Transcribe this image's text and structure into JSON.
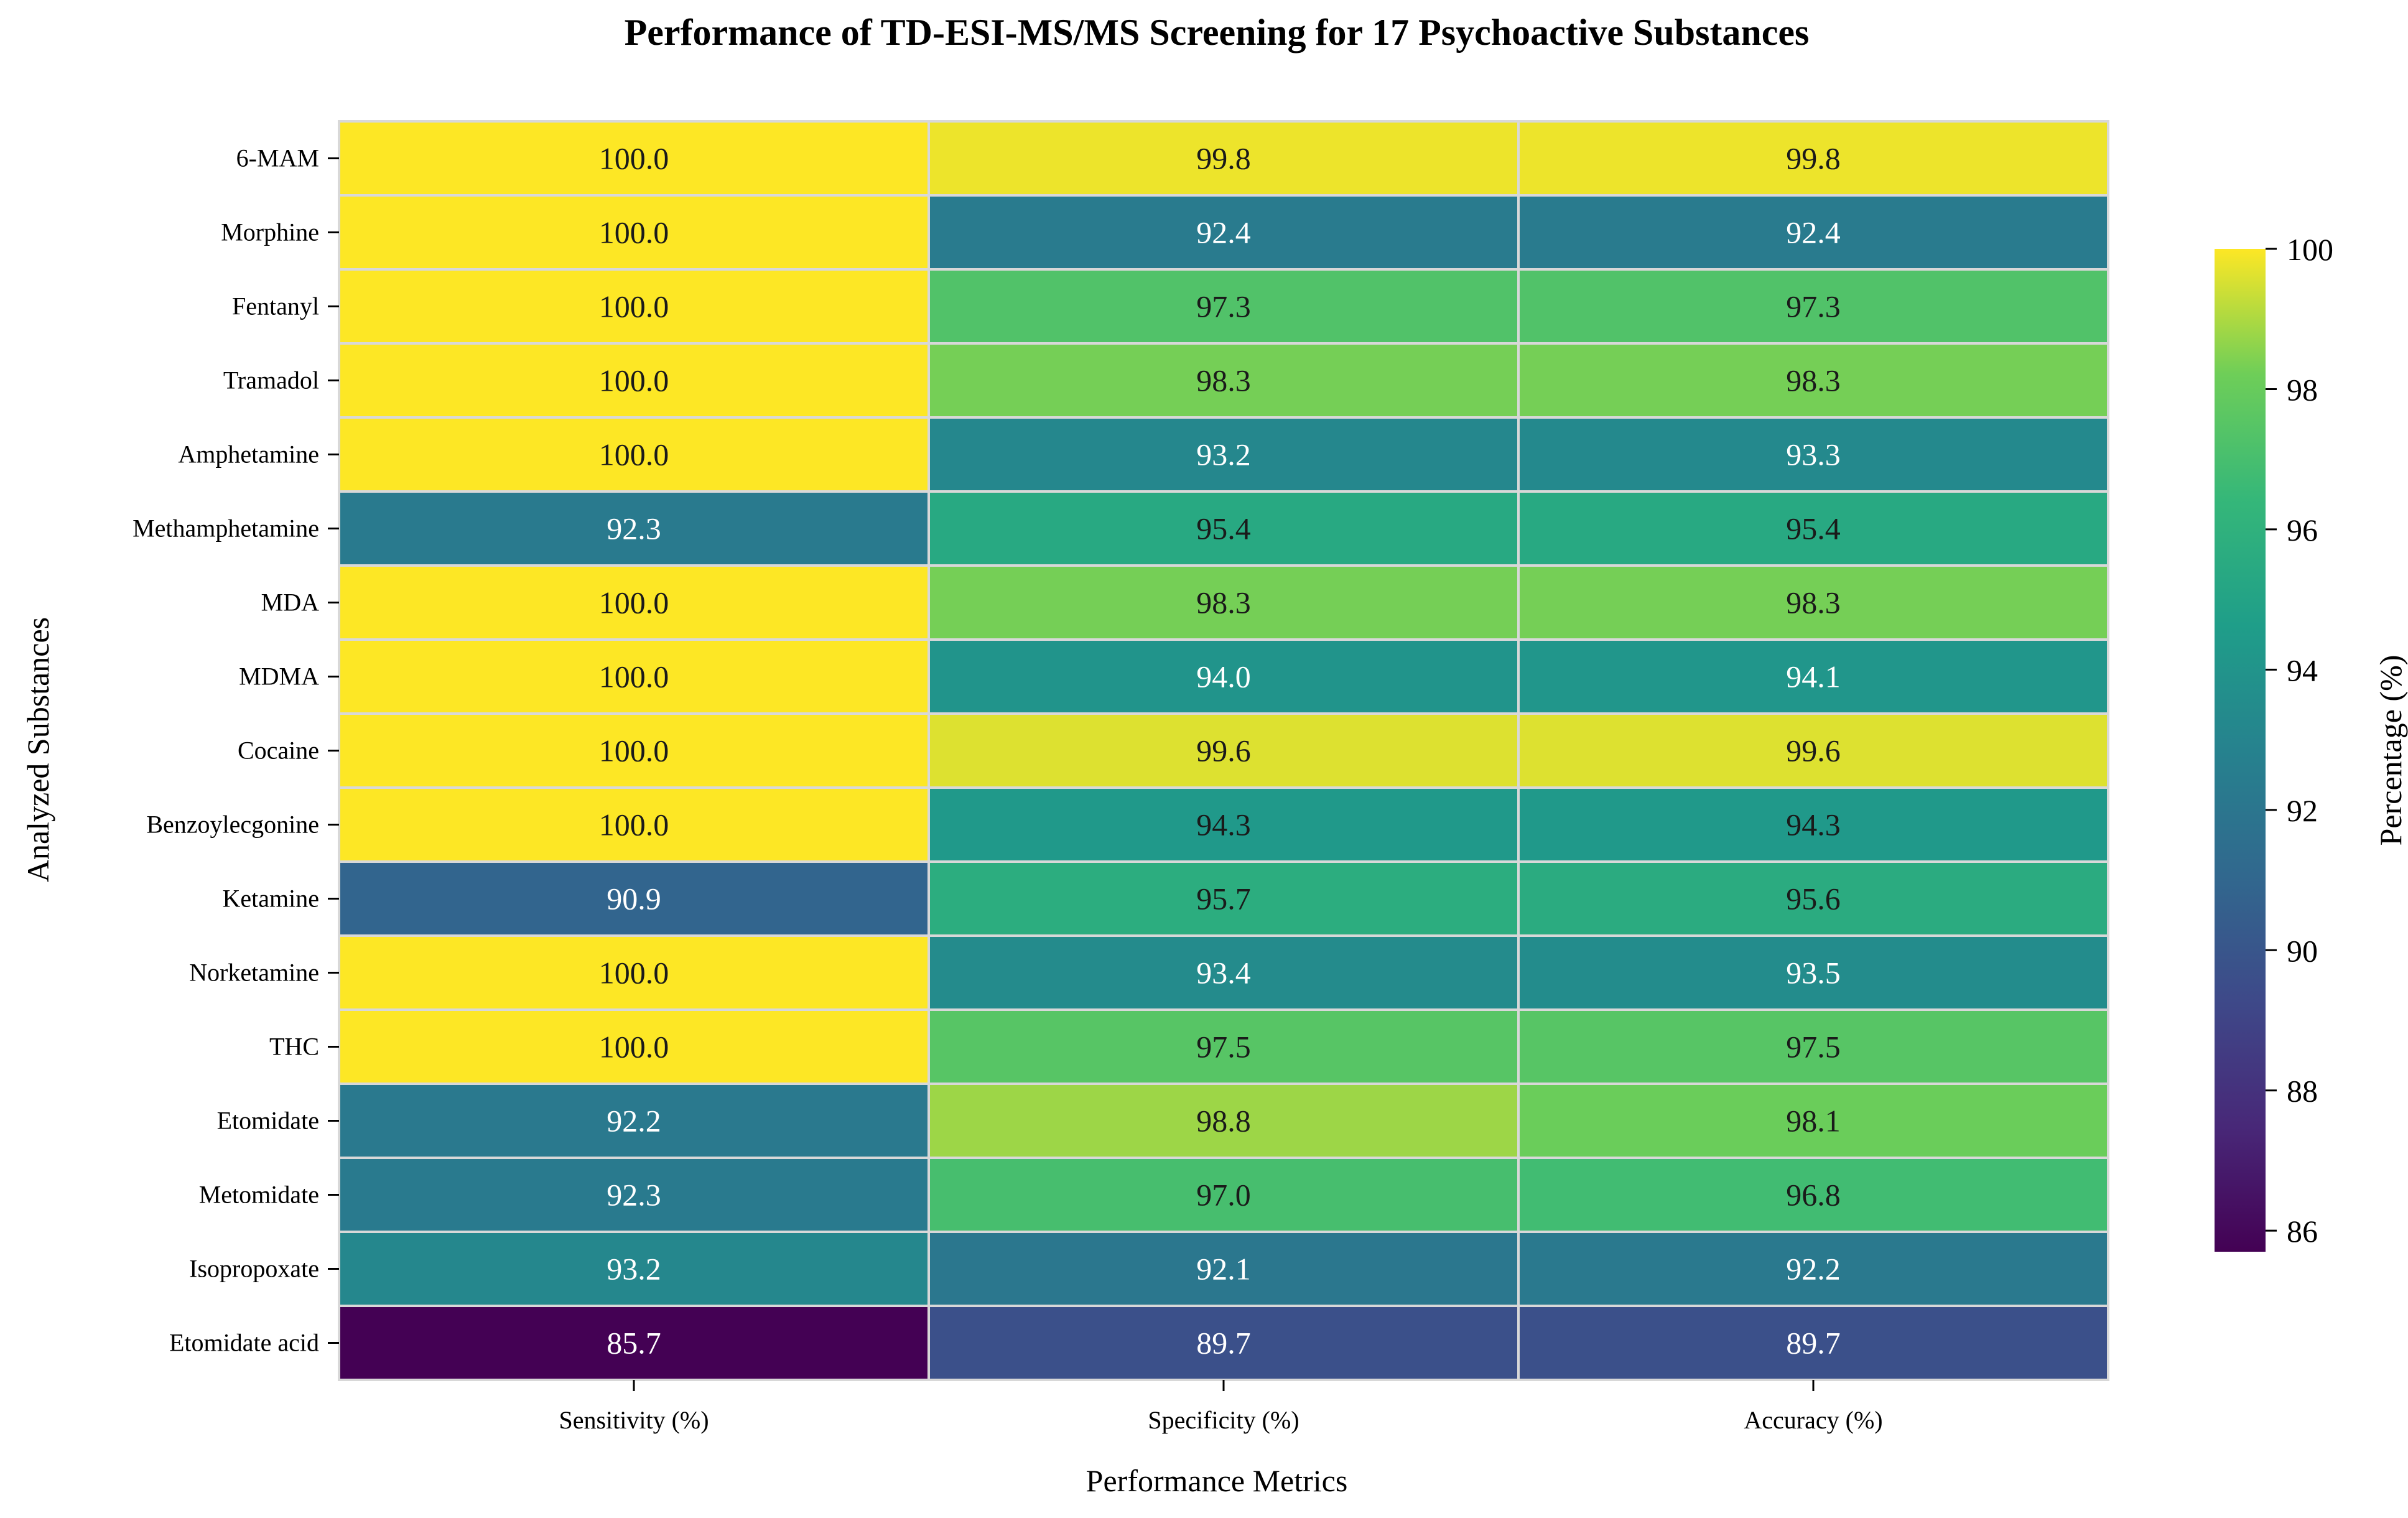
{
  "chart_data": {
    "type": "heatmap",
    "title": "Performance of TD-ESI-MS/MS Screening for 17 Psychoactive Substances",
    "xlabel": "Performance Metrics",
    "ylabel": "Analyzed Substances",
    "columns": [
      "Sensitivity (%)",
      "Specificity (%)",
      "Accuracy (%)"
    ],
    "rows": [
      "6-MAM",
      "Morphine",
      "Fentanyl",
      "Tramadol",
      "Amphetamine",
      "Methamphetamine",
      "MDA",
      "MDMA",
      "Cocaine",
      "Benzoylecgonine",
      "Ketamine",
      "Norketamine",
      "THC",
      "Etomidate",
      "Metomidate",
      "Isopropoxate",
      "Etomidate acid"
    ],
    "values": [
      [
        100.0,
        99.8,
        99.8
      ],
      [
        100.0,
        92.4,
        92.4
      ],
      [
        100.0,
        97.3,
        97.3
      ],
      [
        100.0,
        98.3,
        98.3
      ],
      [
        100.0,
        93.2,
        93.3
      ],
      [
        92.3,
        95.4,
        95.4
      ],
      [
        100.0,
        98.3,
        98.3
      ],
      [
        100.0,
        94.0,
        94.1
      ],
      [
        100.0,
        99.6,
        99.6
      ],
      [
        100.0,
        94.3,
        94.3
      ],
      [
        90.9,
        95.7,
        95.6
      ],
      [
        100.0,
        93.4,
        93.5
      ],
      [
        100.0,
        97.5,
        97.5
      ],
      [
        92.2,
        98.8,
        98.1
      ],
      [
        92.3,
        97.0,
        96.8
      ],
      [
        93.2,
        92.1,
        92.2
      ],
      [
        85.7,
        89.7,
        89.7
      ]
    ],
    "colorbar": {
      "label": "Percentage (%)",
      "range": [
        85.7,
        100
      ],
      "ticks": [
        86,
        88,
        90,
        92,
        94,
        96,
        98,
        100
      ],
      "colormap": "viridis"
    }
  }
}
